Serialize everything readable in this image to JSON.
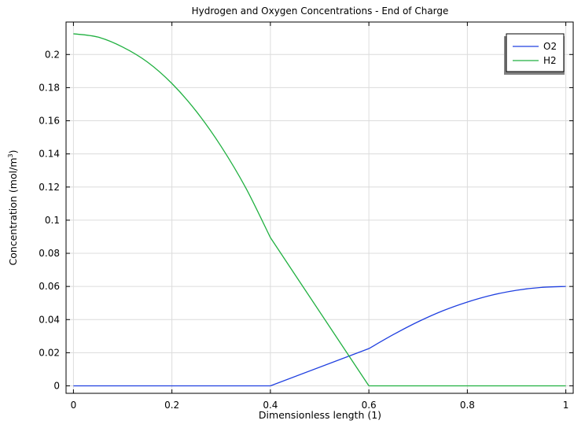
{
  "chart_data": {
    "type": "line",
    "title": "Hydrogen and Oxygen Concentrations - End of Charge",
    "xlabel": "Dimensionless length (1)",
    "ylabel": {
      "main": "Concentration (mol/m",
      "superscript": "3",
      "close": ")"
    },
    "xlim": [
      -0.015,
      1.015
    ],
    "ylim": [
      -0.0045,
      0.2196
    ],
    "xticks": [
      0,
      0.2,
      0.4,
      0.6,
      0.8,
      1
    ],
    "xtick_labels": [
      "0",
      "0.2",
      "0.4",
      "0.6",
      "0.8",
      "1"
    ],
    "yticks": [
      0,
      0.02,
      0.04,
      0.06,
      0.08,
      0.1,
      0.12,
      0.14,
      0.16,
      0.18,
      0.2
    ],
    "ytick_labels": [
      "0",
      "0.02",
      "0.04",
      "0.06",
      "0.08",
      "0.1",
      "0.12",
      "0.14",
      "0.16",
      "0.18",
      "0.2"
    ],
    "grid": true,
    "legend_position": "top-right",
    "series": [
      {
        "name": "O2",
        "color": "#2040e0",
        "x": [
          0,
          0.4,
          0.6,
          0.65,
          0.7,
          0.75,
          0.8,
          0.85,
          0.9,
          0.95,
          1.0
        ],
        "y": [
          0,
          0,
          0.0225,
          0.031,
          0.0387,
          0.0453,
          0.0506,
          0.0548,
          0.0577,
          0.0594,
          0.06
        ]
      },
      {
        "name": "H2",
        "color": "#20b040",
        "x": [
          0,
          0.05,
          0.1,
          0.15,
          0.2,
          0.25,
          0.3,
          0.35,
          0.4,
          0.6,
          1.0
        ],
        "y": [
          0.2125,
          0.2105,
          0.2045,
          0.1955,
          0.1825,
          0.1655,
          0.1445,
          0.1195,
          0.0895,
          0,
          0
        ]
      }
    ]
  }
}
